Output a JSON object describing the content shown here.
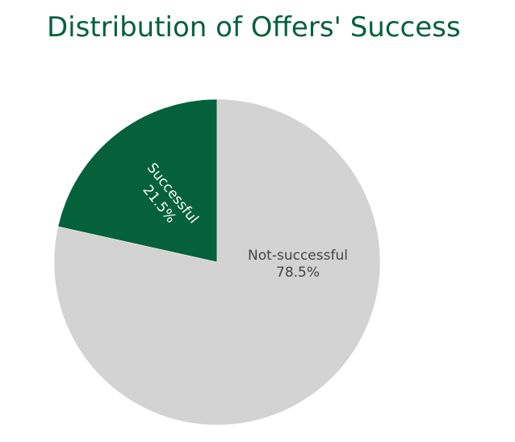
{
  "chart_data": {
    "type": "pie",
    "title": "Distribution of Offers' Success",
    "slices": [
      {
        "label": "Successful",
        "value": 21.5,
        "percent_label": "21.5%",
        "color": "#04613c",
        "text_color": "#ffffff"
      },
      {
        "label": "Not-successful",
        "value": 78.5,
        "percent_label": "78.5%",
        "color": "#d3d3d3",
        "text_color": "#444444"
      }
    ],
    "start": "12 o'clock",
    "direction": "counterclockwise",
    "legend": "none"
  }
}
